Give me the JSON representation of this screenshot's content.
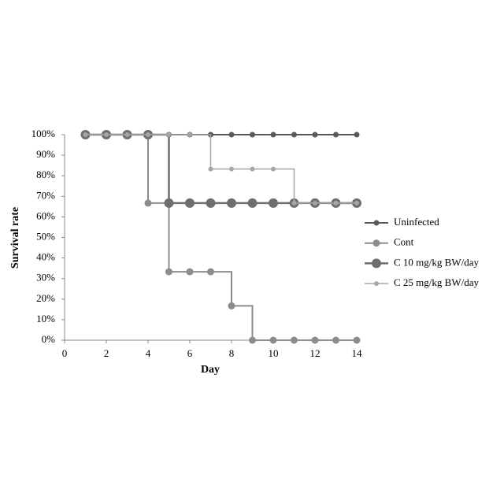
{
  "chart_data": {
    "type": "step-line",
    "x_label": "Day",
    "y_label": "Survival rate",
    "x": [
      1,
      2,
      3,
      4,
      5,
      6,
      7,
      8,
      9,
      10,
      11,
      12,
      13,
      14
    ],
    "xlim": [
      0,
      14
    ],
    "xticks": [
      0,
      2,
      4,
      6,
      8,
      10,
      12,
      14
    ],
    "ylim": [
      0,
      100
    ],
    "yticks": [
      {
        "value": 0,
        "label": "0%"
      },
      {
        "value": 10,
        "label": "10%"
      },
      {
        "value": 20,
        "label": "20%"
      },
      {
        "value": 30,
        "label": "30%"
      },
      {
        "value": 40,
        "label": "40%"
      },
      {
        "value": 50,
        "label": "50%"
      },
      {
        "value": 60,
        "label": "60%"
      },
      {
        "value": 70,
        "label": "70%"
      },
      {
        "value": 80,
        "label": "80%"
      },
      {
        "value": 90,
        "label": "90%"
      },
      {
        "value": 100,
        "label": "100%"
      }
    ],
    "legend": "right",
    "series": [
      {
        "name": "Uninfected",
        "color": "#595959",
        "values": [
          100,
          100,
          100,
          100,
          100,
          100,
          100,
          100,
          100,
          100,
          100,
          100,
          100,
          100
        ]
      },
      {
        "name": "Cont",
        "color": "#8c8c8c",
        "values": [
          100,
          100,
          100,
          66.7,
          33.3,
          33.3,
          33.3,
          16.7,
          0,
          0,
          0,
          0,
          0,
          0
        ]
      },
      {
        "name": "C 10 mg/kg BW/day",
        "color": "#6e6e6e",
        "values": [
          100,
          100,
          100,
          100,
          66.7,
          66.7,
          66.7,
          66.7,
          66.7,
          66.7,
          66.7,
          66.7,
          66.7,
          66.7
        ]
      },
      {
        "name": "C 25 mg/kg BW/day",
        "color": "#a6a6a6",
        "values": [
          100,
          100,
          100,
          100,
          100,
          100,
          83.3,
          83.3,
          83.3,
          83.3,
          66.7,
          66.7,
          66.7,
          66.7
        ]
      }
    ]
  }
}
